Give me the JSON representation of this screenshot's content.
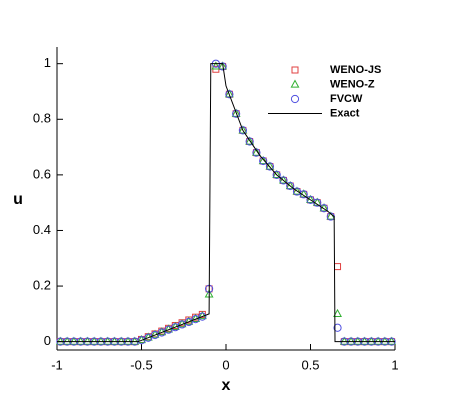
{
  "chart_data": {
    "type": "scatter",
    "xlabel": "x",
    "ylabel": "u",
    "xlim": [
      -1,
      1
    ],
    "ylim": [
      -0.03,
      1.06
    ],
    "xticks": [
      -1,
      -0.5,
      0,
      0.5,
      1
    ],
    "yticks": [
      0,
      0.2,
      0.4,
      0.6,
      0.8,
      1
    ],
    "legend": "upper right",
    "x": [
      -0.98,
      -0.94,
      -0.9,
      -0.86,
      -0.82,
      -0.78,
      -0.74,
      -0.7,
      -0.66,
      -0.62,
      -0.58,
      -0.54,
      -0.5,
      -0.46,
      -0.42,
      -0.38,
      -0.34,
      -0.3,
      -0.26,
      -0.22,
      -0.18,
      -0.14,
      -0.1,
      -0.06,
      -0.02,
      0.02,
      0.06,
      0.1,
      0.14,
      0.18,
      0.22,
      0.26,
      0.3,
      0.34,
      0.38,
      0.42,
      0.46,
      0.5,
      0.54,
      0.58,
      0.62,
      0.66,
      0.7,
      0.74,
      0.78,
      0.82,
      0.86,
      0.9,
      0.94,
      0.98
    ],
    "series": [
      {
        "name": "WENO-JS",
        "color": "#e04040",
        "marker": "square",
        "values": [
          0,
          0,
          0,
          0,
          0,
          0,
          0,
          0,
          0,
          0,
          0,
          0,
          0.008,
          0.018,
          0.028,
          0.038,
          0.048,
          0.058,
          0.068,
          0.078,
          0.088,
          0.098,
          0.19,
          0.98,
          0.99,
          0.89,
          0.82,
          0.76,
          0.72,
          0.68,
          0.65,
          0.63,
          0.6,
          0.58,
          0.56,
          0.54,
          0.53,
          0.51,
          0.5,
          0.48,
          0.45,
          0.27,
          0,
          0,
          0,
          0,
          0,
          0,
          0,
          0
        ]
      },
      {
        "name": "WENO-Z",
        "color": "#30b030",
        "marker": "triangle",
        "values": [
          0,
          0,
          0,
          0,
          0,
          0,
          0,
          0,
          0,
          0,
          0,
          0,
          0.006,
          0.015,
          0.025,
          0.034,
          0.044,
          0.053,
          0.063,
          0.072,
          0.082,
          0.092,
          0.17,
          0.99,
          0.99,
          0.89,
          0.82,
          0.76,
          0.72,
          0.68,
          0.65,
          0.63,
          0.6,
          0.58,
          0.56,
          0.54,
          0.53,
          0.51,
          0.5,
          0.48,
          0.45,
          0.1,
          0,
          0,
          0,
          0,
          0,
          0,
          0,
          0
        ]
      },
      {
        "name": "FVCW",
        "color": "#5050e0",
        "marker": "circle",
        "values": [
          0,
          0,
          0,
          0,
          0,
          0,
          0,
          0,
          0,
          0,
          0,
          0,
          0.005,
          0.014,
          0.024,
          0.033,
          0.043,
          0.052,
          0.062,
          0.071,
          0.081,
          0.09,
          0.19,
          1,
          0.99,
          0.89,
          0.82,
          0.76,
          0.72,
          0.68,
          0.65,
          0.63,
          0.6,
          0.58,
          0.56,
          0.54,
          0.53,
          0.51,
          0.5,
          0.48,
          0.45,
          0.05,
          0,
          0,
          0,
          0,
          0,
          0,
          0,
          0
        ]
      },
      {
        "name": "Exact",
        "color": "#000000",
        "marker": "line",
        "x": [
          -1,
          -0.52,
          -0.1,
          -0.09,
          -0.02,
          0,
          0.1,
          0.2,
          0.3,
          0.4,
          0.5,
          0.6,
          0.64,
          0.645,
          1
        ],
        "values": [
          0,
          0,
          0.1,
          1,
          1,
          0.92,
          0.76,
          0.67,
          0.6,
          0.55,
          0.51,
          0.47,
          0.45,
          0,
          0
        ]
      }
    ]
  }
}
